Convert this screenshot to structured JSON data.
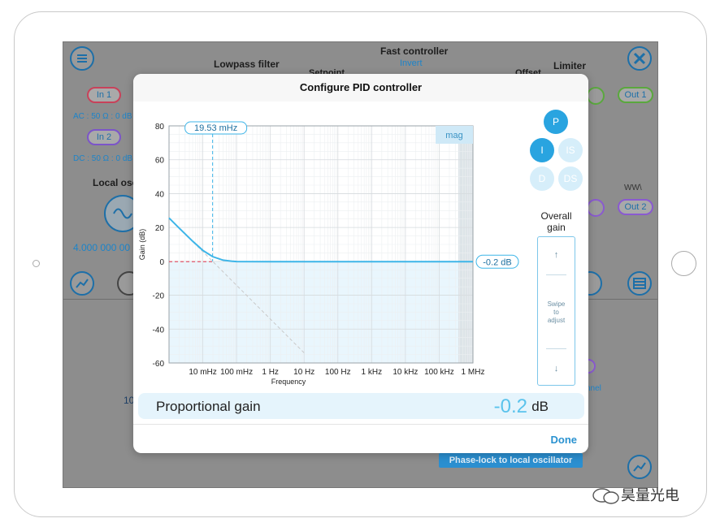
{
  "background": {
    "header_labels": {
      "fast_controller": "Fast controller",
      "invert": "Invert",
      "lowpass_filter": "Lowpass filter",
      "setpoint": "Setpoint",
      "offset": "Offset",
      "limiter": "Limiter"
    },
    "inputs": [
      {
        "label": "In 1",
        "detail": "AC : 50 Ω : 0 dB"
      },
      {
        "label": "In 2",
        "detail": "DC : 50 Ω : 0 dB"
      }
    ],
    "outputs": [
      {
        "label": "Out 1"
      },
      {
        "label": "Out 2"
      }
    ],
    "local_osc_label": "Local osc",
    "frequency_readout": "4.000 000 00",
    "partial_left": "10",
    "partial_channel": "nnel",
    "phase_lock_button": "Phase-lock to local oscillator",
    "wave_glyph": "WW\\"
  },
  "dialog": {
    "title": "Configure PID controller",
    "terms": [
      {
        "label": "P",
        "active": true
      },
      {
        "label": "I",
        "active": true
      },
      {
        "label": "IS",
        "active": false
      },
      {
        "label": "D",
        "active": false
      },
      {
        "label": "DS",
        "active": false
      }
    ],
    "overall_gain_label": "Overall\ngain",
    "swipe_text": "Swipe\nto\nadjust",
    "swipe_up": "↑",
    "swipe_down": "↓",
    "param_label": "Proportional gain",
    "param_value": "-0.2",
    "param_unit": "dB",
    "done_label": "Done"
  },
  "chart_data": {
    "type": "line",
    "ylabel": "Gain (dB)",
    "xlabel": "Frequency",
    "x_scale": "log",
    "xlim_hz": [
      0.001,
      1000000
    ],
    "ylim": [
      -60,
      80
    ],
    "y_ticks": [
      80,
      60,
      40,
      20,
      0,
      -20,
      -40,
      -60
    ],
    "x_ticks": [
      {
        "hz": 0.01,
        "label": "10 mHz"
      },
      {
        "hz": 0.1,
        "label": "100 mHz"
      },
      {
        "hz": 1,
        "label": "1 Hz"
      },
      {
        "hz": 10,
        "label": "10 Hz"
      },
      {
        "hz": 100,
        "label": "100 Hz"
      },
      {
        "hz": 1000,
        "label": "1 kHz"
      },
      {
        "hz": 10000,
        "label": "10 kHz"
      },
      {
        "hz": 100000,
        "label": "100 kHz"
      },
      {
        "hz": 1000000,
        "label": "1 MHz"
      }
    ],
    "corner_frequency_hz": 0.01953,
    "corner_label": "19.53 mHz",
    "proportional_gain_db": -0.2,
    "gain_label": "-0.2 dB",
    "mag_label": "mag",
    "grid": true,
    "series": [
      {
        "name": "",
        "x": [
          0.001,
          0.002,
          0.005,
          0.01,
          0.01953,
          0.04,
          0.07,
          0.1,
          1,
          10,
          100,
          1000,
          10000,
          100000,
          1000000
        ],
        "y": [
          25.6,
          19.6,
          11.9,
          6.5,
          2.8,
          0.7,
          0.1,
          -0.1,
          -0.2,
          -0.2,
          -0.2,
          -0.2,
          -0.2,
          -0.2,
          -0.2
        ]
      },
      {
        "name": "",
        "x": [
          0.001,
          0.01953,
          10
        ],
        "y": [
          25.6,
          0,
          -54
        ]
      },
      {
        "name": "",
        "x": [
          0.001,
          0.01953
        ],
        "y": [
          -0.2,
          -0.2
        ]
      }
    ],
    "colors": {
      "curve": "#3db5e8",
      "asymptote": "#c8c8c8",
      "low": "#e0556a",
      "fill": "#e9f6fd"
    }
  }
}
